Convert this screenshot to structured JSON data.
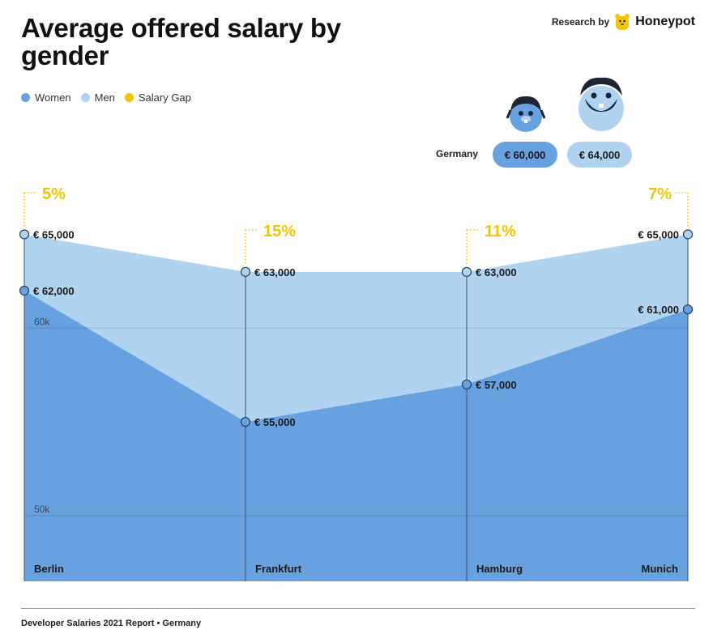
{
  "title": "Average offered salary by gender",
  "brand": {
    "by_label": "Research by",
    "name": "Honeypot"
  },
  "legend": [
    {
      "label": "Women",
      "color": "#67a1e0"
    },
    {
      "label": "Men",
      "color": "#b0d3f1"
    },
    {
      "label": "Salary Gap",
      "color": "#f5c400"
    }
  ],
  "summary": {
    "label": "Germany",
    "women": "€ 60,000",
    "men": "€ 64,000"
  },
  "footer": "Developer Salaries 2021 Report  •  Germany",
  "chart_data": {
    "type": "area",
    "categories": [
      "Berlin",
      "Frankfurt",
      "Hamburg",
      "Munich"
    ],
    "series": [
      {
        "name": "Women",
        "values": [
          62000,
          55000,
          57000,
          61000
        ],
        "labels": [
          "€ 62,000",
          "€ 55,000",
          "€ 57,000",
          "€ 61,000"
        ],
        "color": "#67a1e0"
      },
      {
        "name": "Men",
        "values": [
          65000,
          63000,
          63000,
          65000
        ],
        "labels": [
          "€ 65,000",
          "€ 63,000",
          "€ 63,000",
          "€ 65,000"
        ],
        "color": "#b0d3f1"
      }
    ],
    "salary_gap": [
      "5%",
      "15%",
      "11%",
      "7%"
    ],
    "y_ticks": [
      {
        "value": 60000,
        "label": "60k"
      },
      {
        "value": 50000,
        "label": "50k"
      }
    ],
    "ylim": [
      46500,
      68000
    ],
    "gap_color": "#f5c400"
  }
}
